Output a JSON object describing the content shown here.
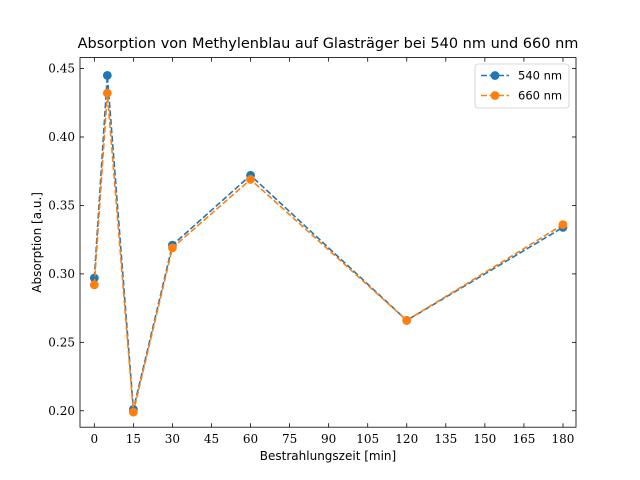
{
  "chart_data": {
    "type": "line",
    "title": "Absorption von Methylenblau auf Glasträger bei 540 nm und 660 nm",
    "xlabel": "Bestrahlungszeit [min]",
    "ylabel": "Absorption [a.u.]",
    "xlim": [
      -5.5,
      185
    ],
    "ylim": [
      0.188,
      0.458
    ],
    "x_ticks": [
      0,
      15,
      30,
      45,
      60,
      75,
      90,
      105,
      120,
      135,
      150,
      165,
      180
    ],
    "x_tick_labels": [
      "0",
      "15",
      "30",
      "45",
      "60",
      "75",
      "90",
      "105",
      "120",
      "135",
      "150",
      "165",
      "180"
    ],
    "y_ticks": [
      0.2,
      0.25,
      0.3,
      0.35,
      0.4,
      0.45
    ],
    "y_tick_labels": [
      "0.20",
      "0.25",
      "0.30",
      "0.35",
      "0.40",
      "0.45"
    ],
    "x": [
      0,
      5,
      15,
      30,
      60,
      120,
      180
    ],
    "series": [
      {
        "name": "540 nm",
        "color": "#1f77b4",
        "values": [
          0.297,
          0.445,
          0.201,
          0.321,
          0.372,
          0.266,
          0.334
        ]
      },
      {
        "name": "660 nm",
        "color": "#ff7f0e",
        "values": [
          0.292,
          0.432,
          0.199,
          0.319,
          0.369,
          0.266,
          0.336
        ]
      }
    ],
    "line_style": "dashed",
    "marker": "circle",
    "grid": false,
    "legend_position": "top-right"
  }
}
